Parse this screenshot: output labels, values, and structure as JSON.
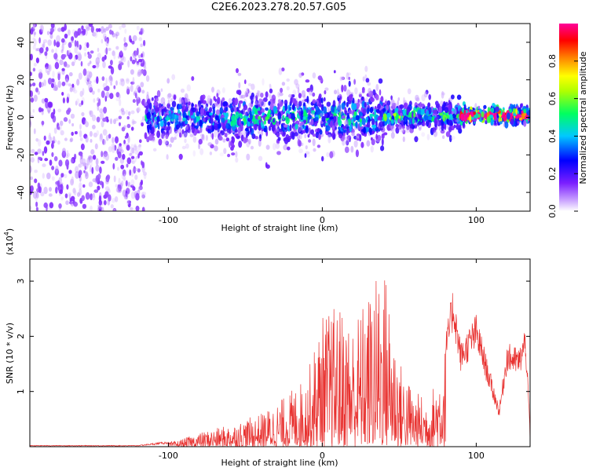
{
  "title": "C2E6.2023.278.20.57.G05",
  "chart_data": [
    {
      "type": "heatmap",
      "xlabel": "Height of straight line (km)",
      "ylabel": "Frequency (Hz)",
      "xlim": [
        -190,
        135
      ],
      "ylim": [
        -50,
        50
      ],
      "xticks": [
        -100,
        0,
        100
      ],
      "yticks": [
        -40,
        -20,
        0,
        20,
        40
      ],
      "colorbar": {
        "label": "Normalized spectral amplitude",
        "range": [
          0.0,
          1.0
        ],
        "ticks": [
          0.0,
          0.2,
          0.4,
          0.6,
          0.8
        ],
        "tick_labels": [
          "0.0",
          "0.2",
          "0.4",
          "0.6",
          "0.8"
        ],
        "colormap": [
          "#ffffff",
          "#7b1fff",
          "#0000ff",
          "#00c8ff",
          "#00ff00",
          "#ffff00",
          "#ff8000",
          "#ff0000",
          "#ff0099"
        ]
      },
      "bands": [
        {
          "x": [
            -190,
            -115
          ],
          "freq_center": 0,
          "freq_halfwidth": 50,
          "amplitude": 0.08,
          "note_level": "scattered"
        },
        {
          "x": [
            -115,
            -60
          ],
          "freq_center": 0,
          "freq_halfwidth": 10,
          "amplitude": 0.22
        },
        {
          "x": [
            -60,
            40
          ],
          "freq_center": 0,
          "freq_halfwidth": 12,
          "amplitude": 0.25
        },
        {
          "x": [
            40,
            90
          ],
          "freq_center": 1,
          "freq_halfwidth": 6,
          "amplitude": 0.3
        },
        {
          "x": [
            90,
            135
          ],
          "freq_center": 1,
          "freq_halfwidth": 3,
          "amplitude": 0.75
        }
      ]
    },
    {
      "type": "line",
      "xlabel": "Height of straight line (km)",
      "ylabel": "SNR (10 * v/v)",
      "y_multiplier": "(x10",
      "y_multiplier_exp": "4",
      "y_multiplier_close": ")",
      "xlim": [
        -190,
        135
      ],
      "ylim": [
        0,
        3.4
      ],
      "xticks": [
        -100,
        0,
        100
      ],
      "yticks": [
        1,
        2,
        3
      ],
      "color": "#e8312f",
      "envelope": [
        {
          "x": -190,
          "y": 0.02
        },
        {
          "x": -120,
          "y": 0.02
        },
        {
          "x": -95,
          "y": 0.1
        },
        {
          "x": -80,
          "y": 0.25
        },
        {
          "x": -60,
          "y": 0.4
        },
        {
          "x": -40,
          "y": 0.6
        },
        {
          "x": -25,
          "y": 0.9
        },
        {
          "x": -10,
          "y": 1.3
        },
        {
          "x": 0,
          "y": 2.4
        },
        {
          "x": 10,
          "y": 2.6
        },
        {
          "x": 20,
          "y": 2.3
        },
        {
          "x": 30,
          "y": 2.8
        },
        {
          "x": 40,
          "y": 3.4
        },
        {
          "x": 50,
          "y": 1.6
        },
        {
          "x": 60,
          "y": 1.0
        },
        {
          "x": 70,
          "y": 0.9
        },
        {
          "x": 80,
          "y": 1.9
        },
        {
          "x": 85,
          "y": 2.8
        },
        {
          "x": 90,
          "y": 1.8
        },
        {
          "x": 100,
          "y": 2.3
        },
        {
          "x": 110,
          "y": 1.2
        },
        {
          "x": 115,
          "y": 0.7
        },
        {
          "x": 120,
          "y": 1.8
        },
        {
          "x": 128,
          "y": 1.7
        },
        {
          "x": 132,
          "y": 2.1
        },
        {
          "x": 135,
          "y": 0.3
        }
      ]
    }
  ]
}
